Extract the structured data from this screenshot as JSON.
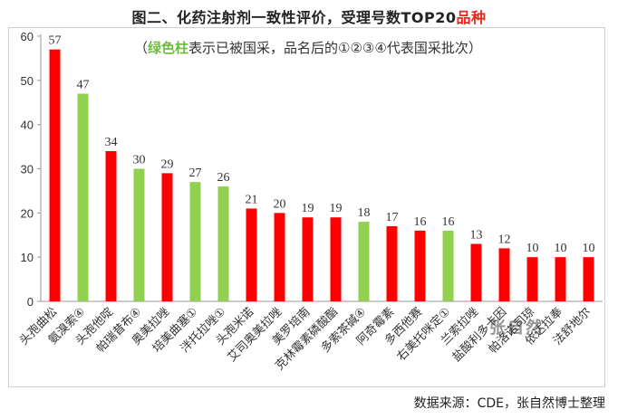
{
  "title": {
    "main": "图二、化药注射剂一致性评价，受理号数TOP20",
    "accent": "品种"
  },
  "note": {
    "green_part": "绿色柱",
    "rest": "表示已被国采，品名后的①②③④代表国采批次）",
    "open_paren": "（"
  },
  "source": "数据来源：CDE，张自然博士整理",
  "watermark": "张自然",
  "colors": {
    "red": "#ff0000",
    "green": "#92d050"
  },
  "chart_data": {
    "type": "bar",
    "title": "图二、化药注射剂一致性评价，受理号数TOP20品种",
    "ylim": [
      0,
      60
    ],
    "yticks": [
      0,
      10,
      20,
      30,
      40,
      50,
      60
    ],
    "categories": [
      "头孢曲松",
      "氨溴索④",
      "头孢他啶",
      "帕瑞昔布④",
      "奥美拉唑",
      "培美曲塞①",
      "泮托拉唑①",
      "头孢米诺",
      "艾司奥美拉唑",
      "美罗培南",
      "克林霉素磷酸酯",
      "多索茶碱④",
      "阿奇霉素",
      "多西他赛",
      "右美托咪定①",
      "兰索拉唑",
      "盐酸利多卡因",
      "帕洛诺司琼",
      "依达拉奉",
      "法舒地尔"
    ],
    "values": [
      57,
      47,
      34,
      30,
      29,
      27,
      26,
      21,
      20,
      19,
      19,
      18,
      17,
      16,
      16,
      13,
      12,
      10,
      10,
      10
    ],
    "bar_colors": [
      "red",
      "green",
      "red",
      "green",
      "red",
      "green",
      "green",
      "red",
      "red",
      "red",
      "red",
      "green",
      "red",
      "red",
      "green",
      "red",
      "red",
      "red",
      "red",
      "red"
    ],
    "grid": false,
    "legend": "none"
  }
}
